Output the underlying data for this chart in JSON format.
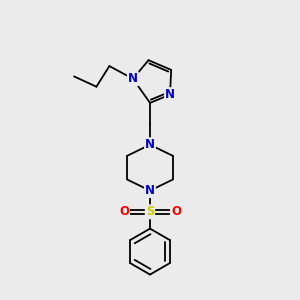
{
  "bg_color": "#ebebeb",
  "bond_color": "#000000",
  "N_color": "#0000cc",
  "S_color": "#cccc00",
  "O_color": "#ff0000",
  "line_width": 1.3,
  "figsize": [
    3.0,
    3.0
  ],
  "dpi": 100,
  "xlim": [
    0,
    10
  ],
  "ylim": [
    0,
    10
  ],
  "font_size": 7.5
}
